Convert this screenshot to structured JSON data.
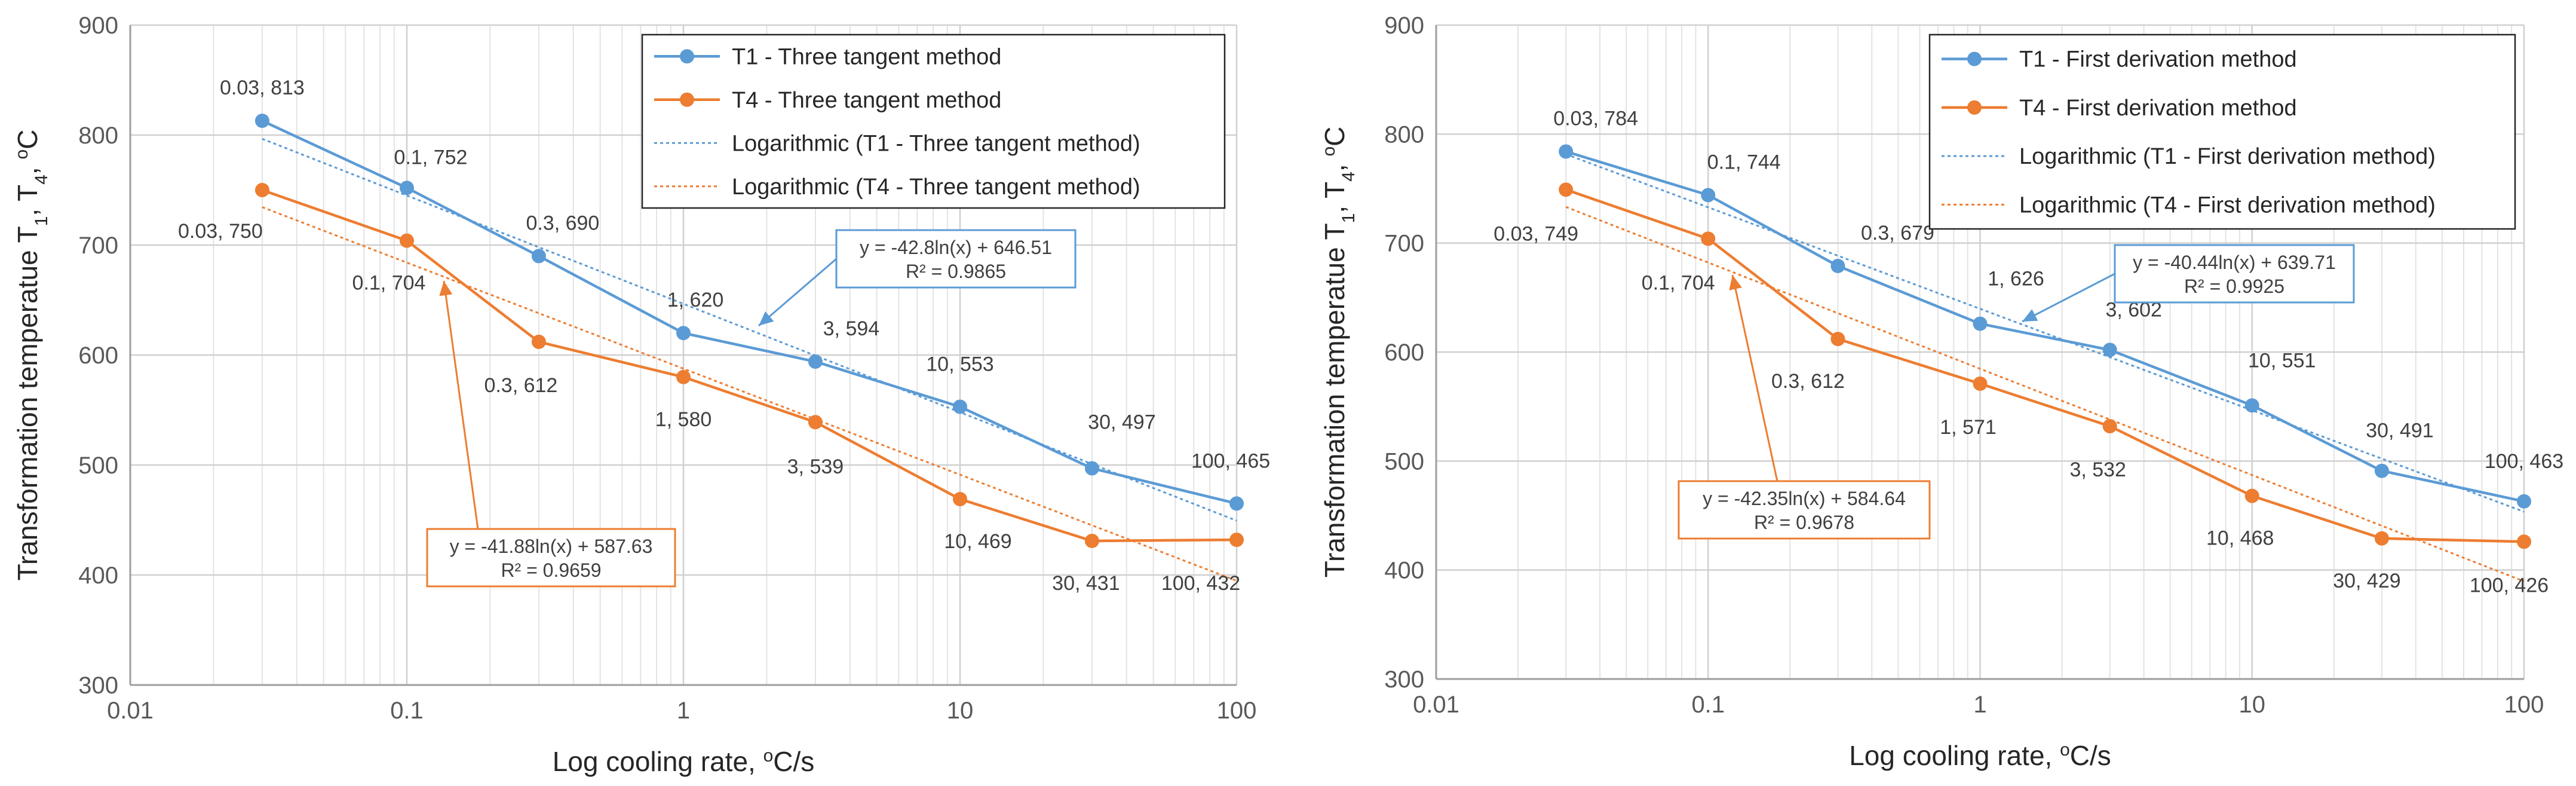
{
  "chart_data": [
    {
      "type": "line",
      "x_scale": "log",
      "xlim": [
        0.01,
        100
      ],
      "ylim": [
        300,
        900
      ],
      "x_ticks": [
        0.01,
        0.1,
        1,
        10,
        100
      ],
      "x_tick_labels": [
        "0.01",
        "0.1",
        "1",
        "10",
        "100"
      ],
      "y_ticks": [
        300,
        400,
        500,
        600,
        700,
        800,
        900
      ],
      "y_tick_labels": [
        "300",
        "400",
        "500",
        "600",
        "700",
        "800",
        "900"
      ],
      "xlabel": "Log cooling rate, ",
      "xlabel_sup": "o",
      "xlabel_tail": "C/s",
      "ylabel_parts": [
        "Transformation temperatue T",
        "1",
        ", T",
        "4",
        ", ",
        "o",
        "C"
      ],
      "grid": true,
      "x": [
        0.03,
        0.1,
        0.3,
        1,
        3,
        10,
        30,
        100
      ],
      "series": [
        {
          "name": "T1 - Three tangent method",
          "color": "#5B9BD5",
          "values": [
            813,
            752,
            690,
            620,
            594,
            553,
            497,
            465
          ],
          "labels": [
            "0.03, 813",
            "0.1, 752",
            "0.3, 690",
            "1, 620",
            "3, 594",
            "10, 553",
            "30, 497",
            "100, 465"
          ]
        },
        {
          "name": "T4 - Three tangent method",
          "color": "#ED7D31",
          "values": [
            750,
            704,
            612,
            580,
            539,
            469,
            431,
            432
          ],
          "labels": [
            "0.03, 750",
            "0.1, 704",
            "0.3, 612",
            "1, 580",
            "3, 539",
            "10, 469",
            "30, 431",
            "100, 432"
          ]
        }
      ],
      "trendlines": [
        {
          "name": "Logarithmic  (T1 - Three tangent method)",
          "color": "#5B9BD5",
          "a": -42.8,
          "b": 646.51,
          "equation": "y = -42.8ln(x) + 646.51",
          "r2": "R² = 0.9865"
        },
        {
          "name": "Logarithmic  (T4 - Three tangent method)",
          "color": "#ED7D31",
          "a": -41.88,
          "b": 587.63,
          "equation": "y = -41.88ln(x) + 587.63",
          "r2": "R² = 0.9659"
        }
      ],
      "legend_position": "top-right"
    },
    {
      "type": "line",
      "x_scale": "log",
      "xlim": [
        0.01,
        100
      ],
      "ylim": [
        300,
        900
      ],
      "x_ticks": [
        0.01,
        0.1,
        1,
        10,
        100
      ],
      "x_tick_labels": [
        "0.01",
        "0.1",
        "1",
        "10",
        "100"
      ],
      "y_ticks": [
        300,
        400,
        500,
        600,
        700,
        800,
        900
      ],
      "y_tick_labels": [
        "300",
        "400",
        "500",
        "600",
        "700",
        "800",
        "900"
      ],
      "xlabel": "Log cooling rate, ",
      "xlabel_sup": "o",
      "xlabel_tail": "C/s",
      "ylabel_parts": [
        "Transformation temperatue T",
        "1",
        ", T",
        "4",
        ", ",
        "o",
        "C"
      ],
      "grid": true,
      "x": [
        0.03,
        0.1,
        0.3,
        1,
        3,
        10,
        30,
        100
      ],
      "series": [
        {
          "name": "T1 - First derivation method",
          "color": "#5B9BD5",
          "values": [
            784,
            744,
            679,
            626,
            602,
            551,
            491,
            463
          ],
          "labels": [
            "0.03, 784",
            "0.1, 744",
            "0.3, 679",
            "1, 626",
            "3, 602",
            "10, 551",
            "30, 491",
            "100, 463"
          ]
        },
        {
          "name": "T4 - First derivation method",
          "color": "#ED7D31",
          "values": [
            749,
            704,
            612,
            571,
            532,
            468,
            429,
            426
          ],
          "labels": [
            "0.03, 749",
            "0.1, 704",
            "0.3, 612",
            "1, 571",
            "3, 532",
            "10, 468",
            "30, 429",
            "100, 426"
          ]
        }
      ],
      "trendlines": [
        {
          "name": "Logarithmic  (T1 - First derivation method)",
          "color": "#5B9BD5",
          "a": -40.44,
          "b": 639.71,
          "equation": "y = -40.44ln(x) + 639.71",
          "r2": "R² = 0.9925"
        },
        {
          "name": "Logarithmic  (T4 - First derivation method)",
          "color": "#ED7D31",
          "a": -42.35,
          "b": 584.64,
          "equation": "y = -42.35ln(x) + 584.64",
          "r2": "R² = 0.9678"
        }
      ],
      "legend_position": "top-right"
    }
  ]
}
